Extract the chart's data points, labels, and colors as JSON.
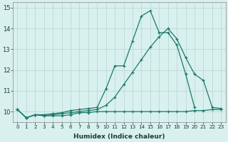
{
  "line1_x": [
    0,
    1,
    2,
    3,
    4,
    5,
    6,
    7,
    8,
    9,
    10,
    11,
    12,
    13,
    14,
    15,
    16,
    17,
    18,
    19,
    20,
    21,
    22,
    23
  ],
  "line1_y": [
    10.1,
    9.7,
    9.85,
    9.8,
    9.8,
    9.8,
    9.85,
    9.95,
    9.95,
    10.0,
    10.0,
    10.0,
    10.0,
    10.0,
    10.0,
    10.0,
    10.0,
    10.0,
    10.0,
    10.0,
    10.05,
    10.05,
    10.1,
    10.1
  ],
  "line2_x": [
    0,
    1,
    2,
    3,
    4,
    5,
    6,
    7,
    8,
    9,
    10,
    11,
    12,
    13,
    14,
    15,
    16,
    17,
    18,
    19,
    20,
    21,
    22,
    23
  ],
  "line2_y": [
    10.1,
    9.7,
    9.85,
    9.8,
    9.85,
    9.9,
    9.95,
    10.0,
    10.05,
    10.1,
    10.3,
    10.7,
    11.3,
    11.9,
    12.5,
    13.1,
    13.6,
    14.0,
    13.5,
    12.6,
    11.8,
    11.5,
    10.2,
    10.15
  ],
  "line3_x": [
    0,
    1,
    2,
    3,
    4,
    5,
    6,
    7,
    8,
    9,
    10,
    11,
    12,
    13,
    14,
    15,
    16,
    17,
    18,
    19,
    20
  ],
  "line3_y": [
    10.1,
    9.7,
    9.85,
    9.85,
    9.9,
    9.95,
    10.05,
    10.1,
    10.15,
    10.2,
    11.1,
    12.2,
    12.2,
    13.4,
    14.6,
    14.85,
    13.8,
    13.8,
    13.2,
    11.8,
    10.2
  ],
  "line_color": "#1a7a6a",
  "bg_color": "#d8f0ee",
  "grid_color": "#b8d4d0",
  "xlabel": "Humidex (Indice chaleur)",
  "ylim": [
    9.5,
    15.25
  ],
  "xlim": [
    -0.5,
    23.5
  ],
  "yticks": [
    10,
    11,
    12,
    13,
    14,
    15
  ],
  "xticks": [
    0,
    1,
    2,
    3,
    4,
    5,
    6,
    7,
    8,
    9,
    10,
    11,
    12,
    13,
    14,
    15,
    16,
    17,
    18,
    19,
    20,
    21,
    22,
    23
  ]
}
